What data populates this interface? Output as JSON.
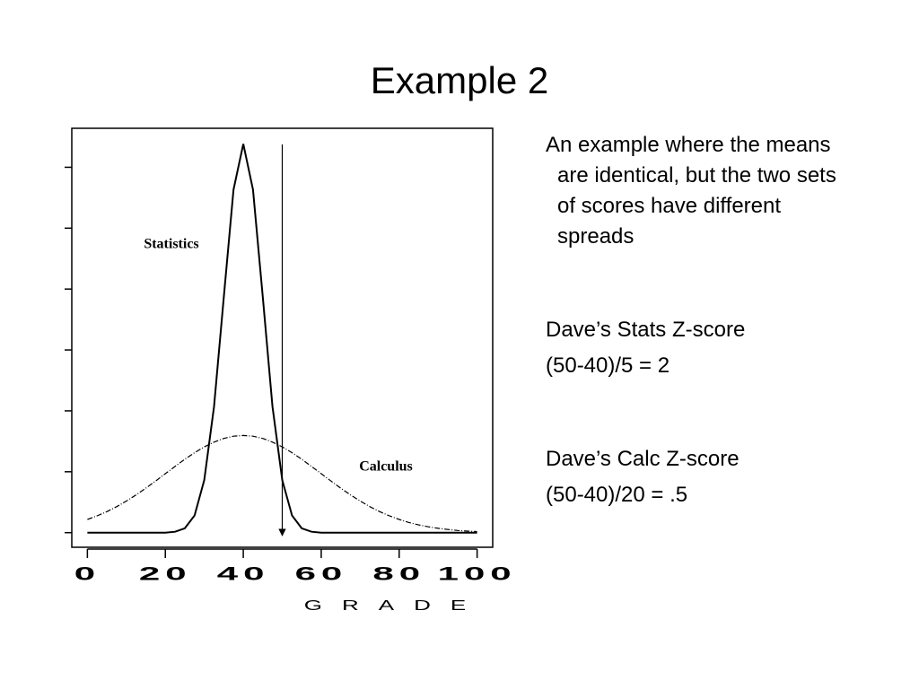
{
  "slide": {
    "title": "Example 2",
    "text": [
      "An example where the means are identical, but the two sets of scores have different spreads",
      "Dave’s Stats Z-score",
      "(50-40)/5 = 2",
      "Dave’s Calc Z-score",
      "(50-40)/20 = .5"
    ]
  },
  "chart_data": {
    "type": "line",
    "x_label": "GRADE",
    "x": [
      0,
      2.5,
      5,
      7.5,
      10,
      12.5,
      15,
      17.5,
      20,
      22.5,
      25,
      27.5,
      30,
      32.5,
      35,
      37.5,
      40,
      42.5,
      45,
      47.5,
      50,
      52.5,
      55,
      57.5,
      60,
      62.5,
      65,
      67.5,
      70,
      72.5,
      75,
      77.5,
      80,
      82.5,
      85,
      87.5,
      90,
      92.5,
      95,
      97.5,
      100
    ],
    "series": [
      {
        "name": "Statistics",
        "color": "#000000",
        "style": "solid",
        "values": [
          0,
          0,
          0,
          0,
          0,
          0,
          0,
          0,
          0,
          0.00018,
          0.00089,
          0.00351,
          0.0108,
          0.0259,
          0.04839,
          0.07041,
          0.07979,
          0.07041,
          0.04839,
          0.0259,
          0.0108,
          0.00351,
          0.00089,
          0.00018,
          0,
          0,
          0,
          0,
          0,
          0,
          0,
          0,
          0,
          0,
          0,
          0,
          0,
          0,
          0,
          0,
          0
        ]
      },
      {
        "name": "Calculus",
        "color": "#000000",
        "style": "dashdot",
        "values": [
          0.0027,
          0.00344,
          0.00431,
          0.00533,
          0.00648,
          0.00775,
          0.00913,
          0.01059,
          0.0121,
          0.0136,
          0.01506,
          0.01641,
          0.0176,
          0.01859,
          0.01933,
          0.01979,
          0.01995,
          0.01979,
          0.01933,
          0.01859,
          0.0176,
          0.01641,
          0.01506,
          0.0136,
          0.0121,
          0.01059,
          0.00913,
          0.00775,
          0.00648,
          0.00533,
          0.00431,
          0.00344,
          0.0027,
          0.00209,
          0.00159,
          0.00119,
          0.00088,
          0.00064,
          0.00045,
          0.00032,
          0.00022
        ]
      }
    ],
    "reference_line": {
      "x": 50
    },
    "xlim": [
      -4,
      104
    ],
    "xticks": [
      0,
      20,
      40,
      60,
      80,
      100
    ],
    "ylim": [
      -0.003,
      0.083
    ],
    "yticks": [
      0,
      0.0125,
      0.025,
      0.0375,
      0.05,
      0.0625,
      0.075
    ]
  }
}
